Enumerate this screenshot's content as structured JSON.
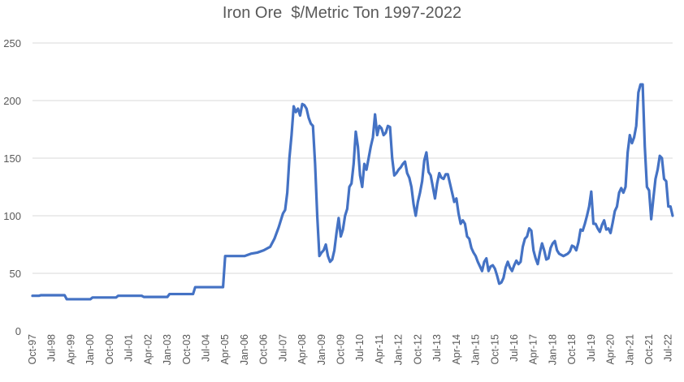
{
  "chart_data": {
    "type": "line",
    "title": "Iron Ore  $/Metric Ton 1997-2022",
    "xlabel": "",
    "ylabel": "",
    "ylim": [
      0,
      250
    ],
    "yticks": [
      0,
      50,
      100,
      150,
      200,
      250
    ],
    "grid": true,
    "legend": "none",
    "line_color": "#4472c4",
    "x_tick_labels": [
      "Oct-97",
      "Jul-98",
      "Apr-99",
      "Jan-00",
      "Oct-00",
      "Jul-01",
      "Apr-02",
      "Jan-03",
      "Oct-03",
      "Jul-04",
      "Apr-05",
      "Jan-06",
      "Oct-06",
      "Jul-07",
      "Apr-08",
      "Jan-09",
      "Oct-09",
      "Jul-10",
      "Apr-11",
      "Jan-12",
      "Oct-12",
      "Jul-13",
      "Apr-14",
      "Jan-15",
      "Oct-15",
      "Jul-16",
      "Apr-17",
      "Jan-18",
      "Oct-18",
      "Jul-19",
      "Apr-20",
      "Jan-21",
      "Oct-21",
      "Jul-22"
    ],
    "series": [
      {
        "points": [
          [
            "Oct-97",
            30.5
          ],
          [
            "Jan-98",
            30.5
          ],
          [
            "Feb-98",
            31
          ],
          [
            "Jul-98",
            31
          ],
          [
            "Jan-99",
            31
          ],
          [
            "Feb-99",
            27.5
          ],
          [
            "Jan-00",
            27.5
          ],
          [
            "Feb-00",
            29
          ],
          [
            "Jan-01",
            29
          ],
          [
            "Feb-01",
            30.5
          ],
          [
            "Jan-02",
            30.5
          ],
          [
            "Feb-02",
            29.5
          ],
          [
            "Jan-03",
            29.5
          ],
          [
            "Feb-03",
            32
          ],
          [
            "Jan-04",
            32
          ],
          [
            "Feb-04",
            38
          ],
          [
            "Mar-05",
            38
          ],
          [
            "Apr-05",
            65
          ],
          [
            "Jan-06",
            65
          ],
          [
            "Apr-06",
            67
          ],
          [
            "Jul-06",
            68
          ],
          [
            "Oct-06",
            70
          ],
          [
            "Jan-07",
            73
          ],
          [
            "Mar-07",
            80
          ],
          [
            "May-07",
            90
          ],
          [
            "Jul-07",
            102
          ],
          [
            "Aug-07",
            105
          ],
          [
            "Sep-07",
            120
          ],
          [
            "Oct-07",
            150
          ],
          [
            "Nov-07",
            170
          ],
          [
            "Dec-07",
            195
          ],
          [
            "Jan-08",
            190
          ],
          [
            "Feb-08",
            193
          ],
          [
            "Mar-08",
            187
          ],
          [
            "Apr-08",
            197
          ],
          [
            "May-08",
            196
          ],
          [
            "Jun-08",
            193
          ],
          [
            "Jul-08",
            185
          ],
          [
            "Aug-08",
            180
          ],
          [
            "Sep-08",
            178
          ],
          [
            "Oct-08",
            145
          ],
          [
            "Nov-08",
            100
          ],
          [
            "Dec-08",
            65
          ],
          [
            "Jan-09",
            68
          ],
          [
            "Feb-09",
            70
          ],
          [
            "Mar-09",
            75
          ],
          [
            "Apr-09",
            65
          ],
          [
            "May-09",
            60
          ],
          [
            "Jun-09",
            62
          ],
          [
            "Jul-09",
            70
          ],
          [
            "Aug-09",
            85
          ],
          [
            "Sep-09",
            98
          ],
          [
            "Oct-09",
            82
          ],
          [
            "Nov-09",
            88
          ],
          [
            "Dec-09",
            100
          ],
          [
            "Jan-10",
            106
          ],
          [
            "Feb-10",
            125
          ],
          [
            "Mar-10",
            128
          ],
          [
            "Apr-10",
            145
          ],
          [
            "May-10",
            173
          ],
          [
            "Jun-10",
            160
          ],
          [
            "Jul-10",
            135
          ],
          [
            "Aug-10",
            125
          ],
          [
            "Sep-10",
            145
          ],
          [
            "Oct-10",
            140
          ],
          [
            "Nov-10",
            150
          ],
          [
            "Dec-10",
            160
          ],
          [
            "Jan-11",
            168
          ],
          [
            "Feb-11",
            188
          ],
          [
            "Mar-11",
            170
          ],
          [
            "Apr-11",
            178
          ],
          [
            "May-11",
            176
          ],
          [
            "Jun-11",
            170
          ],
          [
            "Jul-11",
            172
          ],
          [
            "Aug-11",
            178
          ],
          [
            "Sep-11",
            177
          ],
          [
            "Oct-11",
            150
          ],
          [
            "Nov-11",
            135
          ],
          [
            "Dec-11",
            137
          ],
          [
            "Jan-12",
            140
          ],
          [
            "Feb-12",
            142
          ],
          [
            "Mar-12",
            145
          ],
          [
            "Apr-12",
            147
          ],
          [
            "May-12",
            137
          ],
          [
            "Jun-12",
            133
          ],
          [
            "Jul-12",
            125
          ],
          [
            "Aug-12",
            110
          ],
          [
            "Sep-12",
            100
          ],
          [
            "Oct-12",
            112
          ],
          [
            "Nov-12",
            120
          ],
          [
            "Dec-12",
            130
          ],
          [
            "Jan-13",
            148
          ],
          [
            "Feb-13",
            155
          ],
          [
            "Mar-13",
            138
          ],
          [
            "Apr-13",
            135
          ],
          [
            "May-13",
            125
          ],
          [
            "Jun-13",
            115
          ],
          [
            "Jul-13",
            128
          ],
          [
            "Aug-13",
            137
          ],
          [
            "Sep-13",
            133
          ],
          [
            "Oct-13",
            132
          ],
          [
            "Nov-13",
            136
          ],
          [
            "Dec-13",
            136
          ],
          [
            "Jan-14",
            128
          ],
          [
            "Feb-14",
            120
          ],
          [
            "Mar-14",
            112
          ],
          [
            "Apr-14",
            115
          ],
          [
            "May-14",
            102
          ],
          [
            "Jun-14",
            93
          ],
          [
            "Jul-14",
            96
          ],
          [
            "Aug-14",
            93
          ],
          [
            "Sep-14",
            82
          ],
          [
            "Oct-14",
            80
          ],
          [
            "Nov-14",
            72
          ],
          [
            "Dec-14",
            68
          ],
          [
            "Jan-15",
            65
          ],
          [
            "Feb-15",
            60
          ],
          [
            "Mar-15",
            56
          ],
          [
            "Apr-15",
            52
          ],
          [
            "May-15",
            60
          ],
          [
            "Jun-15",
            63
          ],
          [
            "Jul-15",
            52
          ],
          [
            "Aug-15",
            56
          ],
          [
            "Sep-15",
            57
          ],
          [
            "Oct-15",
            54
          ],
          [
            "Nov-15",
            48
          ],
          [
            "Dec-15",
            41
          ],
          [
            "Jan-16",
            42
          ],
          [
            "Feb-16",
            46
          ],
          [
            "Mar-16",
            55
          ],
          [
            "Apr-16",
            60
          ],
          [
            "May-16",
            55
          ],
          [
            "Jun-16",
            52
          ],
          [
            "Jul-16",
            57
          ],
          [
            "Aug-16",
            61
          ],
          [
            "Sep-16",
            58
          ],
          [
            "Oct-16",
            60
          ],
          [
            "Nov-16",
            73
          ],
          [
            "Dec-16",
            80
          ],
          [
            "Jan-17",
            82
          ],
          [
            "Feb-17",
            89
          ],
          [
            "Mar-17",
            87
          ],
          [
            "Apr-17",
            70
          ],
          [
            "May-17",
            63
          ],
          [
            "Jun-17",
            58
          ],
          [
            "Jul-17",
            68
          ],
          [
            "Aug-17",
            76
          ],
          [
            "Sep-17",
            70
          ],
          [
            "Oct-17",
            62
          ],
          [
            "Nov-17",
            63
          ],
          [
            "Dec-17",
            72
          ],
          [
            "Jan-18",
            76
          ],
          [
            "Feb-18",
            78
          ],
          [
            "Mar-18",
            70
          ],
          [
            "Apr-18",
            67
          ],
          [
            "May-18",
            66
          ],
          [
            "Jun-18",
            65
          ],
          [
            "Jul-18",
            66
          ],
          [
            "Aug-18",
            67
          ],
          [
            "Sep-18",
            69
          ],
          [
            "Oct-18",
            74
          ],
          [
            "Nov-18",
            73
          ],
          [
            "Dec-18",
            70
          ],
          [
            "Jan-19",
            77
          ],
          [
            "Feb-19",
            88
          ],
          [
            "Mar-19",
            87
          ],
          [
            "Apr-19",
            93
          ],
          [
            "May-19",
            100
          ],
          [
            "Jun-19",
            108
          ],
          [
            "Jul-19",
            121
          ],
          [
            "Aug-19",
            93
          ],
          [
            "Sep-19",
            93
          ],
          [
            "Oct-19",
            89
          ],
          [
            "Nov-19",
            86
          ],
          [
            "Dec-19",
            92
          ],
          [
            "Jan-20",
            96
          ],
          [
            "Feb-20",
            88
          ],
          [
            "Mar-20",
            89
          ],
          [
            "Apr-20",
            85
          ],
          [
            "May-20",
            94
          ],
          [
            "Jun-20",
            104
          ],
          [
            "Jul-20",
            108
          ],
          [
            "Aug-20",
            120
          ],
          [
            "Sep-20",
            124
          ],
          [
            "Oct-20",
            120
          ],
          [
            "Nov-20",
            125
          ],
          [
            "Dec-20",
            155
          ],
          [
            "Jan-21",
            170
          ],
          [
            "Feb-21",
            163
          ],
          [
            "Mar-21",
            168
          ],
          [
            "Apr-21",
            178
          ],
          [
            "May-21",
            207
          ],
          [
            "Jun-21",
            214
          ],
          [
            "Jul-21",
            214
          ],
          [
            "Aug-21",
            160
          ],
          [
            "Sep-21",
            125
          ],
          [
            "Oct-21",
            122
          ],
          [
            "Nov-21",
            97
          ],
          [
            "Dec-21",
            115
          ],
          [
            "Jan-22",
            132
          ],
          [
            "Feb-22",
            140
          ],
          [
            "Mar-22",
            152
          ],
          [
            "Apr-22",
            150
          ],
          [
            "May-22",
            132
          ],
          [
            "Jun-22",
            130
          ],
          [
            "Jul-22",
            108
          ],
          [
            "Aug-22",
            108
          ],
          [
            "Sep-22",
            100
          ]
        ]
      }
    ]
  }
}
